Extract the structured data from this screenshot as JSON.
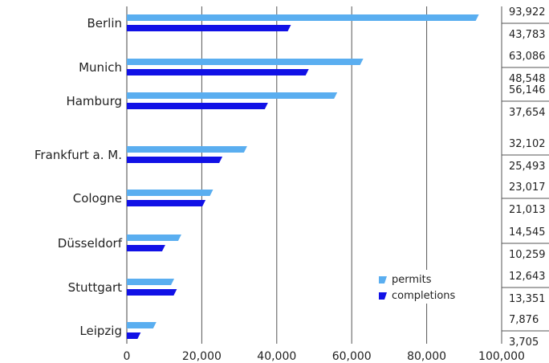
{
  "chart_data": {
    "type": "bar",
    "orientation": "horizontal",
    "categories": [
      "Berlin",
      "Munich",
      "Hamburg",
      "Frankfurt a. M.",
      "Cologne",
      "Düsseldorf",
      "Stuttgart",
      "Leipzig"
    ],
    "series": [
      {
        "name": "permits",
        "color": "#5aaef0",
        "values": [
          93922,
          63086,
          56146,
          32102,
          23017,
          14545,
          12643,
          7876
        ],
        "labels": [
          "93,922",
          "63,086",
          "56,146",
          "32,102",
          "23,017",
          "14,545",
          "12,643",
          "7,876"
        ]
      },
      {
        "name": "completions",
        "color": "#1111e6",
        "values": [
          43783,
          48548,
          37654,
          25493,
          21013,
          10259,
          13351,
          3705
        ],
        "labels": [
          "43,783",
          "48,548",
          "37,654",
          "25,493",
          "21,013",
          "10,259",
          "13,351",
          "3,705"
        ]
      }
    ],
    "xlim": [
      0,
      100000
    ],
    "xticks": [
      0,
      20000,
      40000,
      60000,
      80000,
      100000
    ],
    "xtick_labels": [
      "0",
      "20,000",
      "40,000",
      "60,000",
      "80,000",
      "100,000"
    ],
    "grid": "vertical",
    "legend_position": "bottom-right"
  }
}
